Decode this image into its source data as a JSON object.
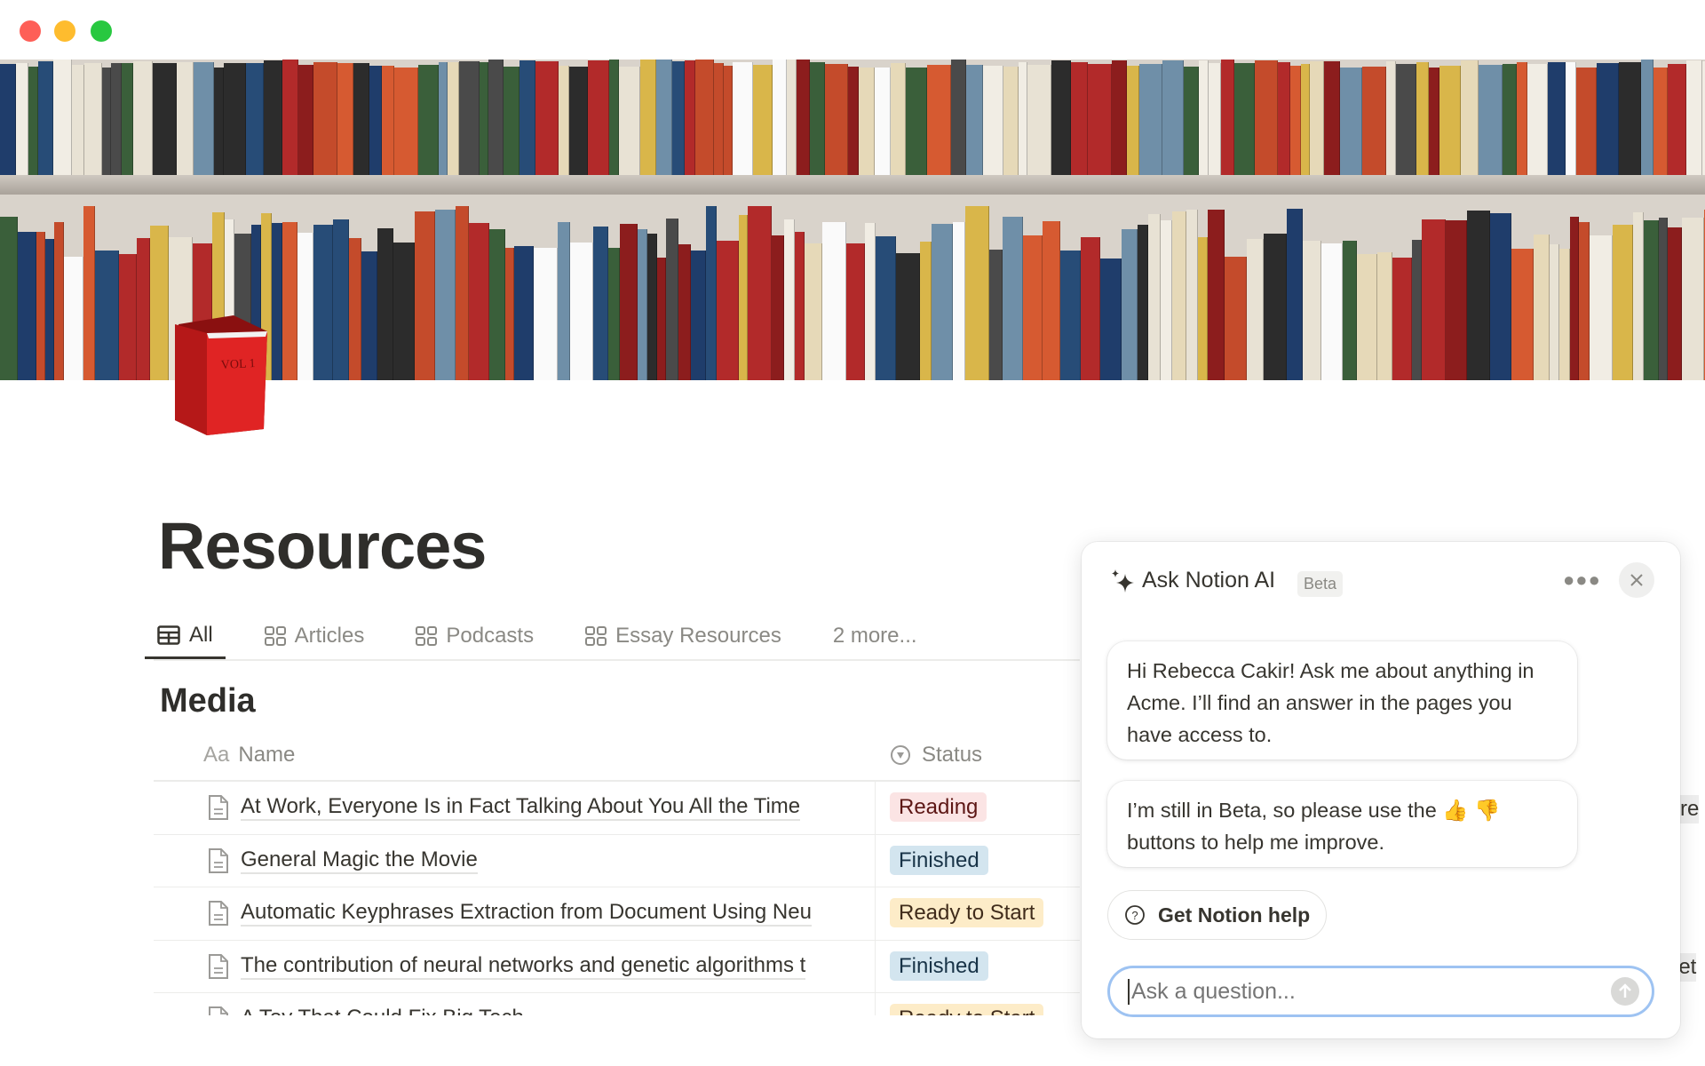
{
  "window": {
    "controls": [
      "close",
      "minimize",
      "maximize"
    ],
    "colors": {
      "close": "#fe5f57",
      "minimize": "#febc2e",
      "maximize": "#28c840"
    }
  },
  "page": {
    "cover": "bookshelf-photo",
    "icon": "red-book-icon",
    "title": "Resources",
    "tabs": [
      {
        "label": "All",
        "icon": "table-icon",
        "active": true
      },
      {
        "label": "Articles",
        "icon": "gallery-icon"
      },
      {
        "label": "Podcasts",
        "icon": "gallery-icon"
      },
      {
        "label": "Essay Resources",
        "icon": "gallery-icon"
      },
      {
        "label": "2 more..."
      }
    ],
    "section_title": "Media",
    "table": {
      "columns": [
        {
          "label": "Name",
          "icon_text": "Aa"
        },
        {
          "label": "Status",
          "icon": "status-icon"
        }
      ],
      "rows": [
        {
          "name": "At Work, Everyone Is in Fact Talking About You All the Time",
          "status": "Reading"
        },
        {
          "name": "General Magic the Movie",
          "status": "Finished"
        },
        {
          "name": "Automatic Keyphrases Extraction from Document Using Neu",
          "status": "Ready to Start"
        },
        {
          "name": "The contribution of neural networks and genetic algorithms t",
          "status": "Finished"
        },
        {
          "name": "A Toy That Could Fix Big Tech",
          "status": "Ready to Start"
        }
      ],
      "status_colors": {
        "Reading": {
          "bg": "#fbe4e4",
          "fg": "#5d1715"
        },
        "Finished": {
          "bg": "#d3e5ef",
          "fg": "#183347"
        },
        "Ready to Start": {
          "bg": "#fdecc8",
          "fg": "#402c1b"
        }
      },
      "peek": [
        "re",
        "let"
      ]
    }
  },
  "ai_panel": {
    "title": "Ask Notion AI",
    "badge": "Beta",
    "messages": [
      "Hi Rebecca Cakir! Ask me about anything in Acme. I’ll find an answer in the pages you have access to.",
      "I’m still in Beta, so please use the 👍 👎 buttons to help me improve."
    ],
    "help_button": "Get Notion help",
    "input": {
      "placeholder": "Ask a question...",
      "value": ""
    },
    "accent": "#9ec3f2"
  }
}
